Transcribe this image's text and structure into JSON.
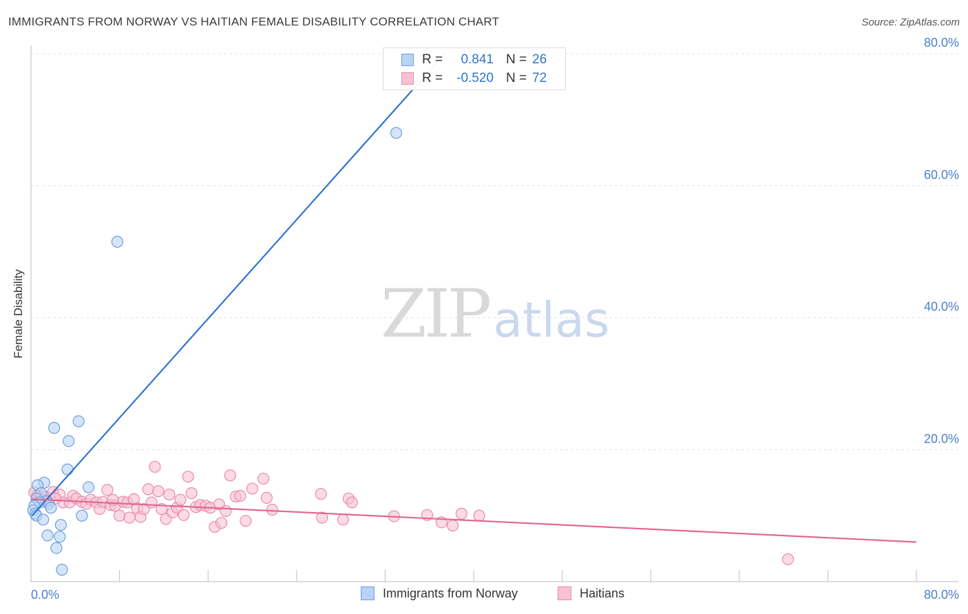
{
  "header": {
    "title": "IMMIGRANTS FROM NORWAY VS HAITIAN FEMALE DISABILITY CORRELATION CHART",
    "source": "Source: ZipAtlas.com"
  },
  "watermark": {
    "zip": "ZIP",
    "atlas": "atlas"
  },
  "stats": [
    {
      "r_label": "R =",
      "r_value": "0.841",
      "n_label": "N =",
      "n_value": "26"
    },
    {
      "r_label": "R =",
      "r_value": "-0.520",
      "n_label": "N =",
      "n_value": "72"
    }
  ],
  "legend": {
    "items": [
      "Immigrants from Norway",
      "Haitians"
    ]
  },
  "colors": {
    "series_a_fill": "#b9d3f5",
    "series_a_stroke": "#6b9fdc",
    "series_a_line": "#2f74d0",
    "series_b_fill": "#f7c2d3",
    "series_b_stroke": "#e98aab",
    "series_b_line": "#e0678f",
    "tick_text": "#4a7fcf",
    "grid": "#e3e3e3"
  },
  "chart_data": {
    "type": "scatter",
    "title": "IMMIGRANTS FROM NORWAY VS HAITIAN FEMALE DISABILITY CORRELATION CHART",
    "xlabel": "",
    "ylabel": "Female Disability",
    "xlim": [
      0,
      80
    ],
    "ylim": [
      0,
      80
    ],
    "x_tick_labels": [
      "0.0%",
      "80.0%"
    ],
    "y_ticks": [
      20,
      40,
      60,
      80
    ],
    "y_tick_labels": [
      "20.0%",
      "40.0%",
      "60.0%",
      "80.0%"
    ],
    "grid": true,
    "legend_position": "bottom-center",
    "series": [
      {
        "name": "Immigrants from Norway",
        "r": 0.841,
        "n": 26,
        "trend": {
          "x": [
            0.1,
            37.4
          ],
          "y": [
            10.0,
            80.0
          ]
        },
        "points": [
          [
            33.0,
            68.0
          ],
          [
            7.8,
            51.5
          ],
          [
            4.3,
            24.3
          ],
          [
            2.1,
            23.3
          ],
          [
            3.4,
            21.3
          ],
          [
            3.3,
            17.0
          ],
          [
            1.2,
            15.0
          ],
          [
            0.6,
            14.6
          ],
          [
            5.2,
            14.3
          ],
          [
            0.9,
            13.4
          ],
          [
            0.5,
            12.6
          ],
          [
            1.4,
            12.2
          ],
          [
            0.8,
            12.0
          ],
          [
            1.6,
            11.8
          ],
          [
            0.3,
            11.5
          ],
          [
            1.8,
            11.2
          ],
          [
            0.2,
            10.8
          ],
          [
            0.4,
            10.3
          ],
          [
            0.5,
            10.0
          ],
          [
            4.6,
            10.0
          ],
          [
            1.1,
            9.4
          ],
          [
            2.7,
            8.6
          ],
          [
            1.5,
            7.0
          ],
          [
            2.6,
            6.8
          ],
          [
            2.3,
            5.1
          ],
          [
            2.8,
            1.8
          ]
        ]
      },
      {
        "name": "Haitians",
        "r": -0.52,
        "n": 72,
        "trend": {
          "x": [
            0.0,
            80.0
          ],
          "y": [
            12.5,
            6.0
          ]
        },
        "points": [
          [
            0.3,
            13.5
          ],
          [
            0.6,
            13.1
          ],
          [
            0.8,
            12.7
          ],
          [
            1.0,
            12.4
          ],
          [
            1.3,
            12.9
          ],
          [
            1.6,
            12.2
          ],
          [
            2.0,
            13.6
          ],
          [
            2.6,
            13.2
          ],
          [
            2.9,
            12.0
          ],
          [
            3.5,
            12.0
          ],
          [
            3.8,
            13.0
          ],
          [
            4.1,
            12.6
          ],
          [
            4.6,
            12.1
          ],
          [
            5.0,
            11.8
          ],
          [
            5.4,
            12.4
          ],
          [
            5.9,
            12.0
          ],
          [
            6.2,
            11.0
          ],
          [
            6.5,
            12.1
          ],
          [
            6.9,
            13.9
          ],
          [
            7.2,
            11.6
          ],
          [
            7.6,
            11.5
          ],
          [
            8.0,
            10.0
          ],
          [
            8.3,
            12.1
          ],
          [
            8.7,
            12.0
          ],
          [
            8.9,
            9.7
          ],
          [
            9.3,
            12.5
          ],
          [
            9.6,
            11.1
          ],
          [
            9.9,
            9.8
          ],
          [
            10.2,
            11.0
          ],
          [
            10.6,
            14.0
          ],
          [
            10.9,
            12.0
          ],
          [
            11.2,
            17.4
          ],
          [
            11.5,
            13.7
          ],
          [
            11.8,
            11.0
          ],
          [
            12.2,
            9.5
          ],
          [
            12.5,
            13.2
          ],
          [
            12.8,
            10.5
          ],
          [
            13.2,
            11.2
          ],
          [
            13.5,
            12.4
          ],
          [
            13.8,
            10.1
          ],
          [
            14.2,
            15.9
          ],
          [
            14.5,
            13.4
          ],
          [
            14.9,
            11.3
          ],
          [
            15.3,
            11.6
          ],
          [
            15.8,
            11.5
          ],
          [
            16.2,
            11.2
          ],
          [
            16.6,
            8.3
          ],
          [
            17.0,
            11.7
          ],
          [
            17.2,
            8.9
          ],
          [
            17.6,
            10.7
          ],
          [
            18.0,
            16.1
          ],
          [
            18.5,
            12.9
          ],
          [
            18.9,
            13.0
          ],
          [
            19.4,
            9.2
          ],
          [
            20.0,
            14.1
          ],
          [
            21.0,
            15.6
          ],
          [
            21.3,
            12.7
          ],
          [
            21.8,
            10.9
          ],
          [
            26.2,
            13.3
          ],
          [
            26.3,
            9.7
          ],
          [
            28.2,
            9.4
          ],
          [
            28.7,
            12.6
          ],
          [
            29.0,
            12.0
          ],
          [
            32.8,
            9.9
          ],
          [
            35.8,
            10.1
          ],
          [
            37.1,
            9.0
          ],
          [
            38.1,
            8.5
          ],
          [
            38.9,
            10.3
          ],
          [
            40.5,
            10.0
          ],
          [
            68.4,
            3.4
          ],
          [
            2.2,
            12.6
          ],
          [
            7.4,
            12.4
          ]
        ]
      }
    ]
  }
}
